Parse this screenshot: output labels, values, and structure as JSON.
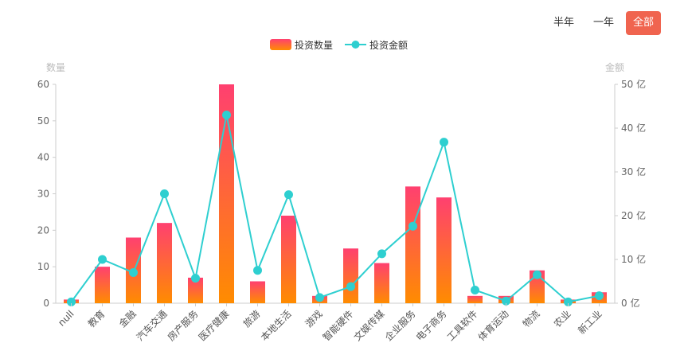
{
  "range_tabs": [
    "半年",
    "一年",
    "全部"
  ],
  "active_range": "全部",
  "chart_data": {
    "type": "bar",
    "categories": [
      "null",
      "教育",
      "金融",
      "汽车交通",
      "房产服务",
      "医疗健康",
      "旅游",
      "本地生活",
      "游戏",
      "智能硬件",
      "文娱传媒",
      "企业服务",
      "电子商务",
      "工具软件",
      "体育运动",
      "物流",
      "农业",
      "新工业"
    ],
    "series": [
      {
        "name": "投资数量",
        "type": "bar",
        "axis": "left",
        "values": [
          1,
          10,
          18,
          22,
          7,
          60,
          6,
          24,
          2,
          15,
          11,
          32,
          29,
          2,
          2,
          9,
          1,
          3
        ],
        "color_top": "#ff4070",
        "color_bottom": "#ff8c00"
      },
      {
        "name": "投资金额",
        "type": "line",
        "axis": "right",
        "values": [
          0.3,
          10,
          7,
          25,
          5.7,
          43,
          7.5,
          24.8,
          1.3,
          3.8,
          11.3,
          17.6,
          36.8,
          3,
          0.5,
          6.5,
          0.3,
          1.7
        ],
        "color": "#2ecfd0"
      }
    ],
    "left_axis": {
      "label": "数量",
      "ylim": [
        0,
        60
      ],
      "ticks": [
        "0",
        "10",
        "20",
        "30",
        "40",
        "50",
        "60"
      ]
    },
    "right_axis": {
      "label": "金额",
      "ylim": [
        0,
        50
      ],
      "ticks": [
        "0 亿",
        "10 亿",
        "20 亿",
        "30 亿",
        "40 亿",
        "50 亿"
      ]
    },
    "legend_position": "top-center"
  }
}
